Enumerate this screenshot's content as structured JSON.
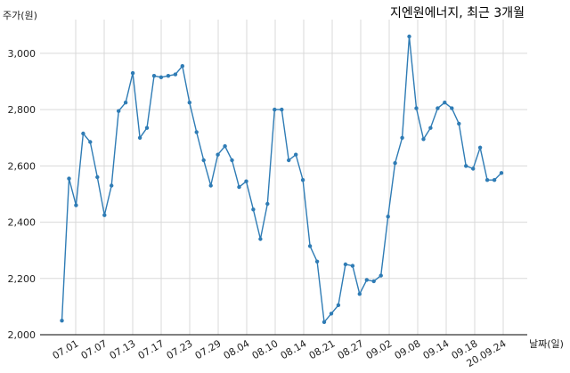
{
  "chart_data": {
    "type": "line",
    "title": "지엔원에너지, 최근 3개월",
    "ylabel": "주가(원)",
    "xlabel": "날짜(일)",
    "ylim": [
      2000,
      3120
    ],
    "yticks": [
      2000,
      2200,
      2400,
      2600,
      2800,
      3000
    ],
    "ytick_labels": [
      "2,000",
      "2,200",
      "2,400",
      "2,600",
      "2,800",
      "3,000"
    ],
    "grid": true,
    "series": [
      {
        "color": "#2f7cb5",
        "values": [
          2050,
          2555,
          2460,
          2715,
          2685,
          2560,
          2425,
          2530,
          2795,
          2825,
          2930,
          2700,
          2735,
          2920,
          2915,
          2920,
          2925,
          2955,
          2825,
          2720,
          2620,
          2530,
          2640,
          2670,
          2620,
          2525,
          2545,
          2445,
          2340,
          2465,
          2800,
          2800,
          2620,
          2640,
          2550,
          2315,
          2260,
          2045,
          2075,
          2105,
          2250,
          2245,
          2145,
          2195,
          2190,
          2210,
          2420,
          2610,
          2700,
          3060,
          2805,
          2695,
          2735,
          2805,
          2825,
          2805,
          2750,
          2600,
          2590,
          2665,
          2550,
          2550,
          2575
        ]
      }
    ],
    "xtick_labels": [
      "07.01",
      "07.07",
      "07.13",
      "07.17",
      "07.23",
      "07.29",
      "08.04",
      "08.10",
      "08.14",
      "08.21",
      "08.27",
      "09.02",
      "09.08",
      "09.14",
      "09.18",
      "20.09.24"
    ]
  }
}
